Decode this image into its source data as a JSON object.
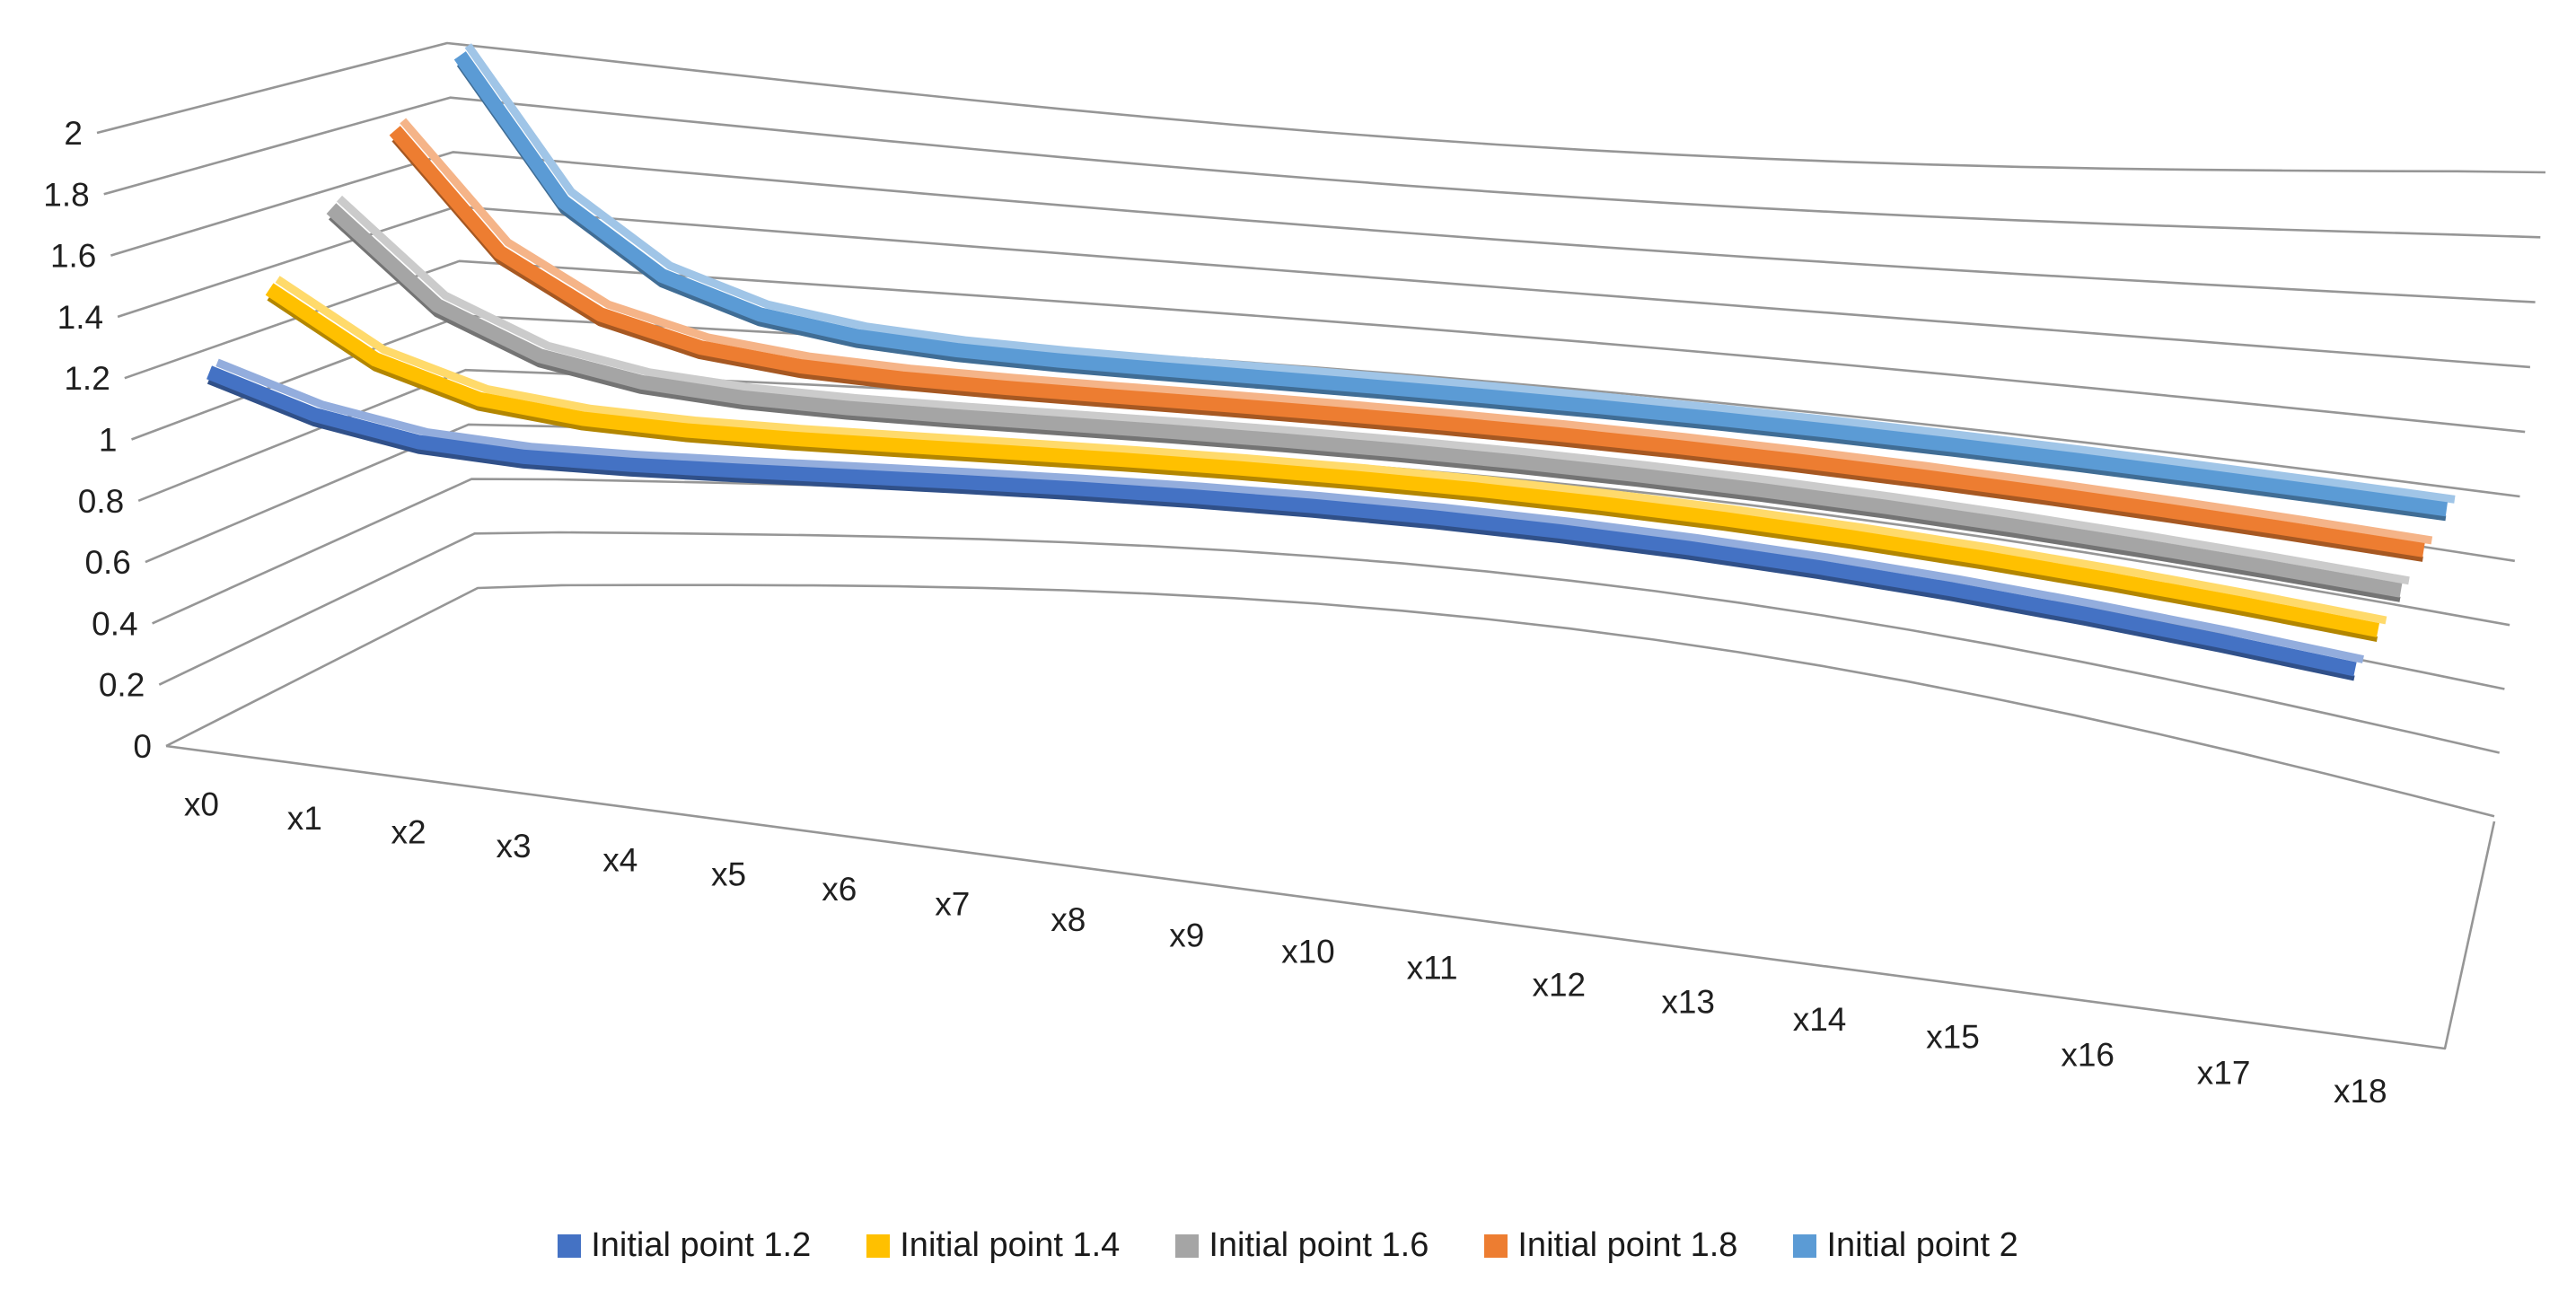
{
  "chart_data": {
    "type": "line",
    "projection": "3d",
    "title": "",
    "xlabel": "",
    "ylabel": "",
    "categories": [
      "x0",
      "x1",
      "x2",
      "x3",
      "x4",
      "x5",
      "x6",
      "x7",
      "x8",
      "x9",
      "x10",
      "x11",
      "x12",
      "x13",
      "x14",
      "x15",
      "x16",
      "x17",
      "x18"
    ],
    "series": [
      {
        "name": "Initial point 1.2",
        "color": "#4472C4",
        "values": [
          1.2,
          1.1,
          1.05,
          1.025,
          1.0125,
          1.00625,
          1.003125,
          1.001563,
          1.000781,
          1.000391,
          1.000195,
          1.000098,
          1.000049,
          1.000024,
          1.000012,
          1.000006,
          1.000003,
          1.000002,
          1.000001
        ]
      },
      {
        "name": "Initial point 1.4",
        "color": "#FFC000",
        "values": [
          1.4,
          1.2,
          1.1,
          1.05,
          1.025,
          1.0125,
          1.00625,
          1.003125,
          1.001563,
          1.000781,
          1.000391,
          1.000195,
          1.000098,
          1.000049,
          1.000024,
          1.000012,
          1.000006,
          1.000003,
          1.000002
        ]
      },
      {
        "name": "Initial point 1.6",
        "color": "#A5A5A5",
        "values": [
          1.6,
          1.3,
          1.15,
          1.075,
          1.0375,
          1.01875,
          1.009375,
          1.004688,
          1.002344,
          1.001172,
          1.000586,
          1.000293,
          1.000146,
          1.000073,
          1.000037,
          1.000018,
          1.000009,
          1.000005,
          1.000002
        ]
      },
      {
        "name": "Initial point 1.8",
        "color": "#ED7D31",
        "values": [
          1.8,
          1.4,
          1.2,
          1.1,
          1.05,
          1.025,
          1.0125,
          1.00625,
          1.003125,
          1.001563,
          1.000781,
          1.000391,
          1.000195,
          1.000098,
          1.000049,
          1.000024,
          1.000012,
          1.000006,
          1.000003
        ]
      },
      {
        "name": "Initial point 2",
        "color": "#5B9BD5",
        "values": [
          2,
          1.5,
          1.25,
          1.125,
          1.0625,
          1.03125,
          1.015625,
          1.007813,
          1.003906,
          1.001953,
          1.000977,
          1.000488,
          1.000244,
          1.000122,
          1.000061,
          1.000031,
          1.000015,
          1.000008,
          1.000004
        ]
      }
    ],
    "ylim": [
      0,
      2
    ],
    "ytick_step": 0.2,
    "y_ticks": [
      "0",
      "0.2",
      "0.4",
      "0.6",
      "0.8",
      "1",
      "1.2",
      "1.4",
      "1.6",
      "1.8",
      "2"
    ],
    "grid": true,
    "gridline_color": "#969696",
    "text_color": "#1f1f1f",
    "background": "#FFFFFF",
    "legend_position": "bottom"
  }
}
